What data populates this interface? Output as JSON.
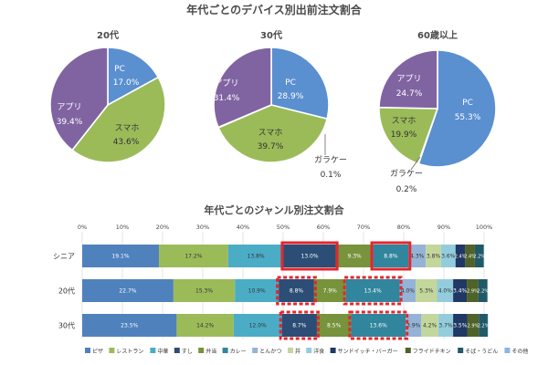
{
  "chart_data": [
    {
      "type": "pie",
      "title": "年代ごとのデバイス別出前注文割合",
      "subtitle": "20代",
      "slices": [
        {
          "label": "PC",
          "value": 17.0,
          "display": "17.0%",
          "color": "#5a8fd0"
        },
        {
          "label": "スマホ",
          "value": 43.6,
          "display": "43.6%",
          "color": "#9bbb59"
        },
        {
          "label": "アプリ",
          "value": 39.4,
          "display": "39.4%",
          "color": "#8064a2"
        }
      ]
    },
    {
      "type": "pie",
      "subtitle": "30代",
      "slices": [
        {
          "label": "PC",
          "value": 28.9,
          "display": "28.9%",
          "color": "#5a8fd0"
        },
        {
          "label": "スマホ",
          "value": 39.7,
          "display": "39.7%",
          "color": "#9bbb59"
        },
        {
          "label": "ガラケー",
          "value": 0.1,
          "display": "0.1%",
          "color": "#b7b7b7"
        },
        {
          "label": "アプリ",
          "value": 31.4,
          "display": "31.4%",
          "color": "#8064a2"
        }
      ]
    },
    {
      "type": "pie",
      "subtitle": "60歳以上",
      "slices": [
        {
          "label": "PC",
          "value": 55.3,
          "display": "55.3%",
          "color": "#5a8fd0"
        },
        {
          "label": "ガラケー",
          "value": 0.2,
          "display": "0.2%",
          "color": "#b7b7b7"
        },
        {
          "label": "スマホ",
          "value": 19.9,
          "display": "19.9%",
          "color": "#9bbb59"
        },
        {
          "label": "アプリ",
          "value": 24.7,
          "display": "24.7%",
          "color": "#8064a2"
        }
      ]
    },
    {
      "type": "bar",
      "orientation": "horizontal",
      "stacked": true,
      "title": "年代ごとのジャンル別注文割合",
      "xlim": [
        0,
        100
      ],
      "xticks": [
        "0%",
        "10%",
        "20%",
        "30%",
        "40%",
        "50%",
        "60%",
        "70%",
        "80%",
        "90%",
        "100%"
      ],
      "categories": [
        "シニア",
        "20代",
        "30代"
      ],
      "legend_position": "bottom",
      "series": [
        {
          "name": "ピザ",
          "color": "#4f81bd",
          "values": [
            19.1,
            22.7,
            23.5
          ],
          "labels": [
            "19.1%",
            "22.7%",
            "23.5%"
          ]
        },
        {
          "name": "レストラン",
          "color": "#9bbb59",
          "values": [
            17.2,
            15.3,
            14.2
          ],
          "labels": [
            "17.2%",
            "15.3%",
            "14.2%"
          ]
        },
        {
          "name": "中華",
          "color": "#4bacc6",
          "values": [
            13.8,
            10.9,
            12.0
          ],
          "labels": [
            "13.8%",
            "10.9%",
            "12.0%"
          ]
        },
        {
          "name": "すし",
          "color": "#2c4d75",
          "values": [
            13.0,
            8.8,
            8.7
          ],
          "labels": [
            "13.0%",
            "8.8%",
            "8.7%"
          ]
        },
        {
          "name": "弁当",
          "color": "#77933c",
          "values": [
            9.3,
            7.9,
            8.5
          ],
          "labels": [
            "9.3%",
            "7.9%",
            "8.5%"
          ]
        },
        {
          "name": "カレー",
          "color": "#31859c",
          "values": [
            8.8,
            13.4,
            13.6
          ],
          "labels": [
            "8.8%",
            "13.4%",
            "13.6%"
          ]
        },
        {
          "name": "とんかつ",
          "color": "#95b3d7",
          "values": [
            4.3,
            4.0,
            3.9
          ],
          "labels": [
            "4.3%",
            "4.0%",
            "3.9%"
          ]
        },
        {
          "name": "丼",
          "color": "#c3d69b",
          "values": [
            3.8,
            5.3,
            4.2
          ],
          "labels": [
            "3.8%",
            "5.3%",
            "4.2%"
          ]
        },
        {
          "name": "洋食",
          "color": "#93cddd",
          "values": [
            3.6,
            4.0,
            3.7
          ],
          "labels": [
            "3.6%",
            "4.0%",
            "3.7%"
          ]
        },
        {
          "name": "サンドイッチ・バーガー",
          "color": "#1f3864",
          "values": [
            2.4,
            3.4,
            3.5
          ],
          "labels": [
            "2.4%",
            "3.4%",
            "3.5%"
          ]
        },
        {
          "name": "フライドチキン",
          "color": "#4f6228",
          "values": [
            2.4,
            2.9,
            2.9
          ],
          "labels": [
            "2.4%",
            "2.9%",
            "2.9%"
          ]
        },
        {
          "name": "そば・うどん",
          "color": "#215967",
          "values": [
            2.2,
            2.2,
            2.2
          ],
          "labels": [
            "2.2%",
            "2.2%",
            "2.2%"
          ]
        },
        {
          "name": "その他",
          "color": "#8eb4e3",
          "values": [
            0.1,
            0.1,
            0.1
          ],
          "labels": [
            "",
            "",
            ""
          ]
        }
      ],
      "highlights": [
        {
          "row": 0,
          "series": 3,
          "style": "solid",
          "color": "#e3262d"
        },
        {
          "row": 0,
          "series": 5,
          "style": "solid",
          "color": "#e3262d"
        },
        {
          "row": 1,
          "series": 3,
          "style": "dashed",
          "color": "#e3262d"
        },
        {
          "row": 1,
          "series": 5,
          "style": "dashed",
          "color": "#e3262d"
        },
        {
          "row": 2,
          "series": 3,
          "style": "dashed",
          "color": "#e3262d"
        },
        {
          "row": 2,
          "series": 5,
          "style": "dashed",
          "color": "#e3262d"
        }
      ]
    }
  ]
}
